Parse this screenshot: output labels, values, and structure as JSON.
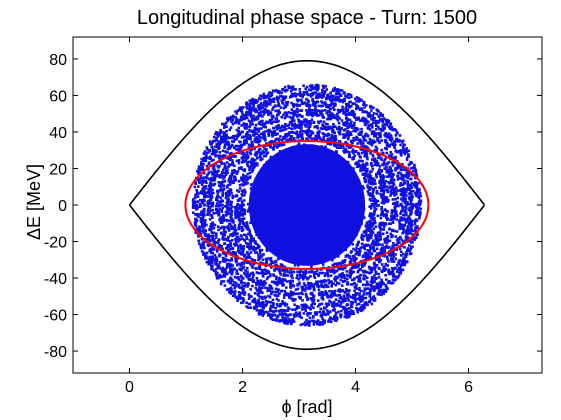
{
  "chart_data": {
    "type": "scatter",
    "title": "Longitudinal phase space - Turn: 1500",
    "xlabel": "ϕ [rad]",
    "ylabel": "ΔE [MeV]",
    "xlim": [
      -1,
      7.3
    ],
    "ylim": [
      -92,
      92
    ],
    "xticks": [
      0,
      2,
      4,
      6
    ],
    "yticks": [
      -80,
      -60,
      -40,
      -20,
      0,
      20,
      40,
      60,
      80
    ],
    "grid": false,
    "legend": "none",
    "colors": {
      "particles": "#1010e0",
      "separatrix": "#000000",
      "bucket_contour": "#ff0000",
      "axes": "#000000",
      "background": "#ffffff"
    },
    "series": [
      {
        "kind": "scatter",
        "phi_center": 3.14,
        "phi_range": [
          1.1,
          5.2
        ],
        "dE_range": [
          -68,
          68
        ],
        "rings": [
          {
            "a": 1.05,
            "b": 34
          },
          {
            "a": 1.28,
            "b": 41
          },
          {
            "a": 1.45,
            "b": 47
          },
          {
            "a": 1.62,
            "b": 53
          },
          {
            "a": 1.78,
            "b": 58
          },
          {
            "a": 1.9,
            "b": 62
          },
          {
            "a": 2.02,
            "b": 66
          }
        ]
      },
      {
        "kind": "line",
        "shape": "separatrix",
        "phi_range": [
          0,
          6.28
        ],
        "dE_max": 79
      },
      {
        "kind": "line",
        "shape": "ellipse",
        "phi_center": 3.14,
        "phi_halfwidth": 2.15,
        "dE_halfheight": 35
      }
    ]
  }
}
